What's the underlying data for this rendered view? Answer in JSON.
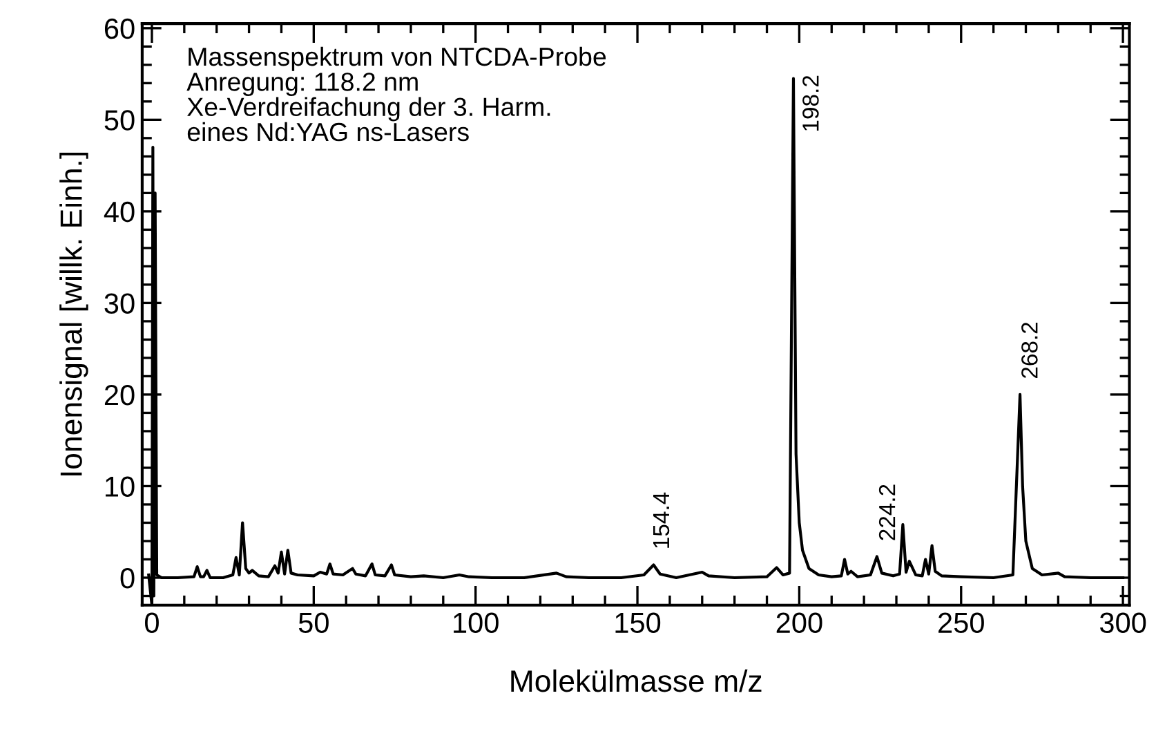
{
  "chart_data": {
    "type": "line",
    "xlabel": "Molekülmasse m/z",
    "ylabel": "Ionensignal [willk. Einh.]",
    "xlim": [
      -3,
      302
    ],
    "ylim": [
      -3,
      60.5
    ],
    "xticks": [
      0,
      50,
      100,
      150,
      200,
      250,
      300
    ],
    "yticks": [
      0,
      10,
      20,
      30,
      40,
      50,
      60
    ],
    "grid": false,
    "legend": false,
    "marker": "none",
    "line_style": "solid",
    "annotations": [
      "Massenspektrum von NTCDA-Probe\nAnregung: 118.2 nm\nXe-Verdreifachung der 3. Harm.\neines Nd:YAG ns-Lasers",
      {
        "text": "154.4",
        "x": 154.4,
        "y": 1.4
      },
      {
        "text": "198.2",
        "x": 198.2,
        "y": 54.5
      },
      {
        "text": "224.2",
        "x": 224.2,
        "y": 2.3
      },
      {
        "text": "268.2",
        "x": 268.2,
        "y": 20
      }
    ],
    "series": [
      {
        "color": "#000000",
        "x": [
          -1,
          0,
          0.3,
          0.6,
          1,
          1.5,
          3,
          8,
          13,
          14,
          15,
          16,
          17,
          18,
          22,
          25,
          26,
          27,
          28,
          29,
          30,
          31,
          33,
          36,
          38,
          39,
          40,
          41,
          42,
          43,
          45,
          50,
          52,
          54,
          55,
          56,
          59,
          62,
          63,
          66,
          68,
          69,
          72,
          74,
          75,
          80,
          84,
          90,
          95,
          98,
          105,
          115,
          125,
          128,
          135,
          145,
          152,
          155,
          157,
          162,
          170,
          172,
          180,
          190,
          193,
          195,
          197,
          198.2,
          199,
          200,
          201,
          203,
          206,
          210,
          213,
          214,
          215,
          216,
          218,
          222,
          224,
          225.5,
          229,
          231,
          232,
          233,
          234,
          236,
          238,
          239,
          240,
          241,
          242,
          244,
          250,
          260,
          266,
          268.2,
          269,
          270,
          272,
          275,
          280,
          282,
          290,
          300
        ],
        "values": [
          0.3,
          -3,
          47,
          -2,
          42,
          0.3,
          0,
          0,
          0.1,
          1.2,
          0.1,
          0.1,
          0.8,
          0,
          0,
          0.3,
          2.2,
          0.3,
          6,
          1,
          0.5,
          0.8,
          0.2,
          0.1,
          1.3,
          0.5,
          2.8,
          0.4,
          3,
          0.5,
          0.3,
          0.2,
          0.6,
          0.4,
          1.5,
          0.4,
          0.3,
          1,
          0.4,
          0.2,
          1.5,
          0.3,
          0.2,
          1.4,
          0.3,
          0.1,
          0.2,
          0,
          0.3,
          0.1,
          0,
          0,
          0.5,
          0.1,
          0,
          0,
          0.3,
          1.4,
          0.4,
          0,
          0.6,
          0.2,
          0,
          0.1,
          1.1,
          0.3,
          0.5,
          54.5,
          13.5,
          6,
          3,
          1,
          0.3,
          0.1,
          0.2,
          2,
          0.4,
          0.7,
          0.1,
          0.3,
          2.3,
          0.5,
          0.2,
          0.4,
          5.8,
          0.6,
          1.8,
          0.3,
          0.2,
          2,
          0.4,
          3.5,
          0.7,
          0.2,
          0.1,
          0,
          0.3,
          20,
          10,
          4,
          1,
          0.3,
          0.5,
          0.1,
          0,
          0
        ]
      }
    ]
  }
}
